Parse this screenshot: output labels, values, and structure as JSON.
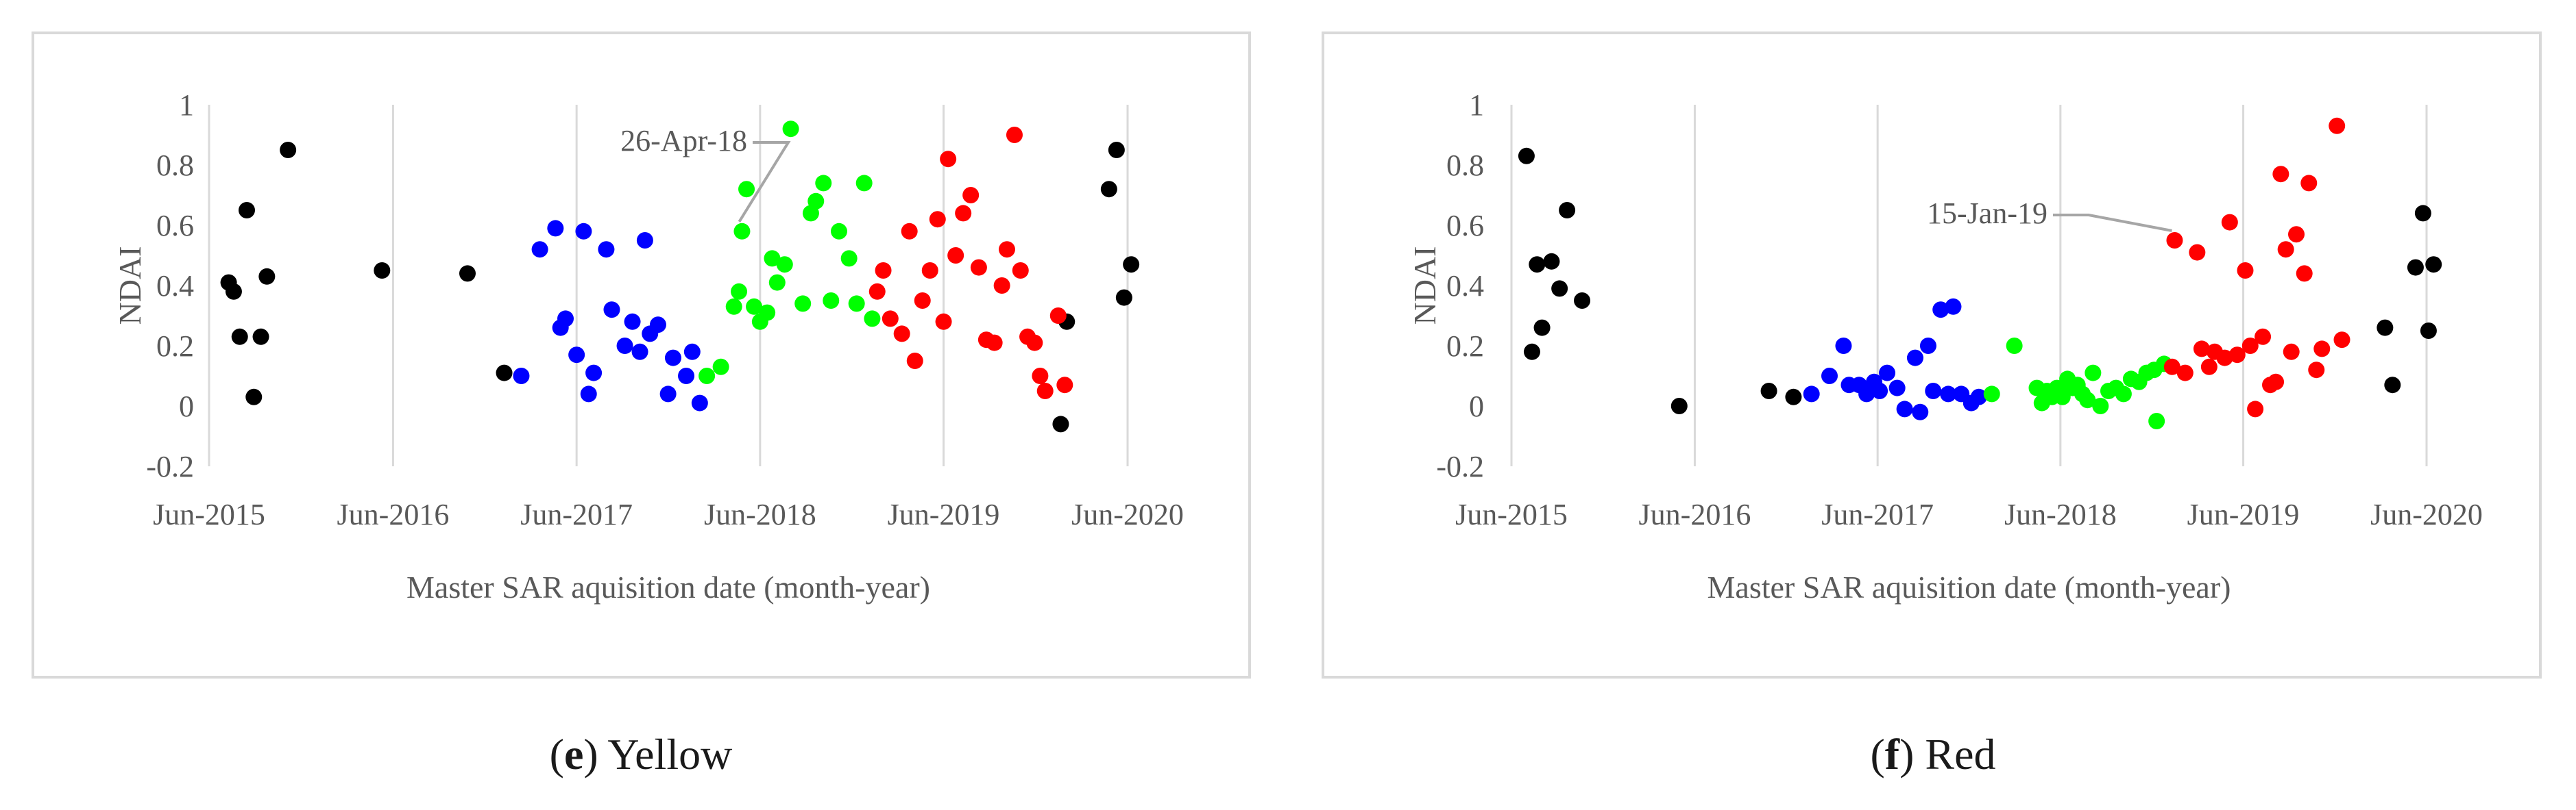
{
  "captions": [
    {
      "letter": "e",
      "label": "Yellow"
    },
    {
      "letter": "f",
      "label": "Red"
    }
  ],
  "colors": {
    "black": "#000000",
    "blue": "#0000ff",
    "green": "#00ff00",
    "red": "#ff0000",
    "grid": "#d9d9d9",
    "axis_text": "#595959"
  },
  "chart_data": [
    {
      "type": "scatter",
      "title": "",
      "xlabel": "Master SAR aquisition date (month-year)",
      "ylabel": "NDAI",
      "x_ticks": [
        "Jun-2015",
        "Jun-2016",
        "Jun-2017",
        "Jun-2018",
        "Jun-2019",
        "Jun-2020"
      ],
      "x_tick_dates": [
        "2015-06-01",
        "2016-06-01",
        "2017-06-01",
        "2018-06-01",
        "2019-06-01",
        "2020-06-01"
      ],
      "y_ticks": [
        "1",
        "0.8",
        "0.6",
        "0.4",
        "0.2",
        "0",
        "-0.2"
      ],
      "ylim": [
        -0.2,
        1
      ],
      "xlim": [
        "2015-06-01",
        "2020-06-01"
      ],
      "grid": "vertical",
      "annotation": {
        "text": "26-Apr-18",
        "x": "2018-04-26",
        "y": 0.58
      },
      "series": [
        {
          "color": "black",
          "points": [
            [
              "2015-07-10",
              0.41
            ],
            [
              "2015-07-20",
              0.38
            ],
            [
              "2015-08-01",
              0.23
            ],
            [
              "2015-08-15",
              0.65
            ],
            [
              "2015-08-29",
              0.03
            ],
            [
              "2015-09-12",
              0.23
            ],
            [
              "2015-09-24",
              0.43
            ],
            [
              "2015-11-05",
              0.85
            ],
            [
              "2016-05-10",
              0.45
            ],
            [
              "2016-10-27",
              0.44
            ],
            [
              "2017-01-08",
              0.11
            ],
            [
              "2020-01-20",
              -0.06
            ],
            [
              "2020-02-01",
              0.28
            ],
            [
              "2020-04-25",
              0.72
            ],
            [
              "2020-05-10",
              0.85
            ],
            [
              "2020-05-25",
              0.36
            ],
            [
              "2020-06-08",
              0.47
            ]
          ]
        },
        {
          "color": "blue",
          "points": [
            [
              "2017-02-11",
              0.1
            ],
            [
              "2017-03-20",
              0.52
            ],
            [
              "2017-04-20",
              0.59
            ],
            [
              "2017-04-30",
              0.26
            ],
            [
              "2017-05-10",
              0.29
            ],
            [
              "2017-06-01",
              0.17
            ],
            [
              "2017-06-15",
              0.58
            ],
            [
              "2017-06-25",
              0.04
            ],
            [
              "2017-07-05",
              0.11
            ],
            [
              "2017-07-30",
              0.52
            ],
            [
              "2017-08-10",
              0.32
            ],
            [
              "2017-09-05",
              0.2
            ],
            [
              "2017-09-20",
              0.28
            ],
            [
              "2017-10-05",
              0.18
            ],
            [
              "2017-10-15",
              0.55
            ],
            [
              "2017-10-25",
              0.24
            ],
            [
              "2017-11-10",
              0.27
            ],
            [
              "2017-11-30",
              0.04
            ],
            [
              "2017-12-10",
              0.16
            ],
            [
              "2018-01-05",
              0.1
            ],
            [
              "2018-01-17",
              0.18
            ],
            [
              "2018-02-01",
              0.01
            ]
          ]
        },
        {
          "color": "green",
          "points": [
            [
              "2018-02-15",
              0.1
            ],
            [
              "2018-03-15",
              0.13
            ],
            [
              "2018-04-10",
              0.33
            ],
            [
              "2018-04-20",
              0.38
            ],
            [
              "2018-04-26",
              0.58
            ],
            [
              "2018-05-05",
              0.72
            ],
            [
              "2018-05-20",
              0.33
            ],
            [
              "2018-06-01",
              0.28
            ],
            [
              "2018-06-15",
              0.31
            ],
            [
              "2018-06-25",
              0.49
            ],
            [
              "2018-07-05",
              0.41
            ],
            [
              "2018-07-20",
              0.47
            ],
            [
              "2018-08-01",
              0.92
            ],
            [
              "2018-08-25",
              0.34
            ],
            [
              "2018-09-10",
              0.64
            ],
            [
              "2018-09-20",
              0.68
            ],
            [
              "2018-10-05",
              0.74
            ],
            [
              "2018-10-20",
              0.35
            ],
            [
              "2018-11-05",
              0.58
            ],
            [
              "2018-11-25",
              0.49
            ],
            [
              "2018-12-10",
              0.34
            ],
            [
              "2018-12-25",
              0.74
            ],
            [
              "2019-01-10",
              0.29
            ]
          ]
        },
        {
          "color": "red",
          "points": [
            [
              "2019-01-20",
              0.38
            ],
            [
              "2019-02-01",
              0.45
            ],
            [
              "2019-02-15",
              0.29
            ],
            [
              "2019-03-10",
              0.24
            ],
            [
              "2019-03-25",
              0.58
            ],
            [
              "2019-04-05",
              0.15
            ],
            [
              "2019-04-20",
              0.35
            ],
            [
              "2019-05-05",
              0.45
            ],
            [
              "2019-05-20",
              0.62
            ],
            [
              "2019-06-01",
              0.28
            ],
            [
              "2019-06-10",
              0.82
            ],
            [
              "2019-06-25",
              0.5
            ],
            [
              "2019-07-10",
              0.64
            ],
            [
              "2019-07-25",
              0.7
            ],
            [
              "2019-08-10",
              0.46
            ],
            [
              "2019-08-25",
              0.22
            ],
            [
              "2019-09-10",
              0.21
            ],
            [
              "2019-09-25",
              0.4
            ],
            [
              "2019-10-05",
              0.52
            ],
            [
              "2019-10-20",
              0.9
            ],
            [
              "2019-11-01",
              0.45
            ],
            [
              "2019-11-15",
              0.23
            ],
            [
              "2019-11-29",
              0.21
            ],
            [
              "2019-12-10",
              0.1
            ],
            [
              "2019-12-20",
              0.05
            ],
            [
              "2020-01-15",
              0.3
            ],
            [
              "2020-01-28",
              0.07
            ]
          ]
        }
      ]
    },
    {
      "type": "scatter",
      "title": "",
      "xlabel": "Master SAR aquisition date (month-year)",
      "ylabel": "NDAI",
      "x_ticks": [
        "Jun-2015",
        "Jun-2016",
        "Jun-2017",
        "Jun-2018",
        "Jun-2019",
        "Jun-2020"
      ],
      "x_tick_dates": [
        "2015-06-01",
        "2016-06-01",
        "2017-06-01",
        "2018-06-01",
        "2019-06-01",
        "2020-06-01"
      ],
      "y_ticks": [
        "1",
        "0.8",
        "0.6",
        "0.4",
        "0.2",
        "0",
        "-0.2"
      ],
      "ylim": [
        -0.2,
        1
      ],
      "xlim": [
        "2015-06-01",
        "2020-06-01"
      ],
      "grid": "vertical",
      "annotation": {
        "text": "15-Jan-19",
        "x": "2019-01-15",
        "y": 0.55
      },
      "series": [
        {
          "color": "black",
          "points": [
            [
              "2015-07-01",
              0.83
            ],
            [
              "2015-07-12",
              0.18
            ],
            [
              "2015-07-22",
              0.47
            ],
            [
              "2015-08-01",
              0.26
            ],
            [
              "2015-08-20",
              0.48
            ],
            [
              "2015-09-05",
              0.39
            ],
            [
              "2015-09-20",
              0.65
            ],
            [
              "2015-10-20",
              0.35
            ],
            [
              "2016-05-01",
              0.0
            ],
            [
              "2016-10-27",
              0.05
            ],
            [
              "2016-12-15",
              0.03
            ],
            [
              "2020-03-10",
              0.26
            ],
            [
              "2020-03-25",
              0.07
            ],
            [
              "2020-05-10",
              0.46
            ],
            [
              "2020-05-25",
              0.64
            ],
            [
              "2020-06-05",
              0.25
            ],
            [
              "2020-06-15",
              0.47
            ]
          ]
        },
        {
          "color": "blue",
          "points": [
            [
              "2017-01-20",
              0.04
            ],
            [
              "2017-02-25",
              0.1
            ],
            [
              "2017-03-25",
              0.2
            ],
            [
              "2017-04-05",
              0.07
            ],
            [
              "2017-04-25",
              0.07
            ],
            [
              "2017-05-10",
              0.04
            ],
            [
              "2017-05-25",
              0.08
            ],
            [
              "2017-06-05",
              0.05
            ],
            [
              "2017-06-20",
              0.11
            ],
            [
              "2017-07-10",
              0.06
            ],
            [
              "2017-07-25",
              -0.01
            ],
            [
              "2017-08-15",
              0.16
            ],
            [
              "2017-08-25",
              -0.02
            ],
            [
              "2017-09-10",
              0.2
            ],
            [
              "2017-09-20",
              0.05
            ],
            [
              "2017-10-05",
              0.32
            ],
            [
              "2017-10-20",
              0.04
            ],
            [
              "2017-10-30",
              0.33
            ],
            [
              "2017-11-15",
              0.04
            ],
            [
              "2017-12-05",
              0.01
            ],
            [
              "2017-12-20",
              0.03
            ]
          ]
        },
        {
          "color": "green",
          "points": [
            [
              "2018-01-15",
              0.04
            ],
            [
              "2018-03-01",
              0.2
            ],
            [
              "2018-04-15",
              0.06
            ],
            [
              "2018-04-25",
              0.01
            ],
            [
              "2018-05-05",
              0.05
            ],
            [
              "2018-05-15",
              0.03
            ],
            [
              "2018-05-25",
              0.06
            ],
            [
              "2018-06-05",
              0.03
            ],
            [
              "2018-06-15",
              0.09
            ],
            [
              "2018-06-25",
              0.06
            ],
            [
              "2018-07-05",
              0.07
            ],
            [
              "2018-07-15",
              0.04
            ],
            [
              "2018-07-25",
              0.02
            ],
            [
              "2018-08-05",
              0.11
            ],
            [
              "2018-08-20",
              0.0
            ],
            [
              "2018-09-05",
              0.05
            ],
            [
              "2018-09-20",
              0.06
            ],
            [
              "2018-10-05",
              0.04
            ],
            [
              "2018-10-20",
              0.09
            ],
            [
              "2018-11-05",
              0.08
            ],
            [
              "2018-11-20",
              0.11
            ],
            [
              "2018-12-05",
              0.12
            ],
            [
              "2018-12-10",
              -0.05
            ],
            [
              "2018-12-25",
              0.14
            ]
          ]
        },
        {
          "color": "red",
          "points": [
            [
              "2019-01-10",
              0.13
            ],
            [
              "2019-01-15",
              0.55
            ],
            [
              "2019-02-05",
              0.11
            ],
            [
              "2019-03-01",
              0.51
            ],
            [
              "2019-03-10",
              0.19
            ],
            [
              "2019-03-25",
              0.13
            ],
            [
              "2019-04-05",
              0.18
            ],
            [
              "2019-04-25",
              0.16
            ],
            [
              "2019-05-05",
              0.61
            ],
            [
              "2019-05-20",
              0.17
            ],
            [
              "2019-06-05",
              0.45
            ],
            [
              "2019-06-15",
              0.2
            ],
            [
              "2019-06-25",
              -0.01
            ],
            [
              "2019-07-10",
              0.23
            ],
            [
              "2019-07-25",
              0.07
            ],
            [
              "2019-08-05",
              0.08
            ],
            [
              "2019-08-15",
              0.77
            ],
            [
              "2019-08-25",
              0.52
            ],
            [
              "2019-09-05",
              0.18
            ],
            [
              "2019-09-15",
              0.57
            ],
            [
              "2019-10-01",
              0.44
            ],
            [
              "2019-10-10",
              0.74
            ],
            [
              "2019-10-25",
              0.12
            ],
            [
              "2019-11-05",
              0.19
            ],
            [
              "2019-12-05",
              0.93
            ],
            [
              "2019-12-15",
              0.22
            ]
          ]
        }
      ]
    }
  ]
}
